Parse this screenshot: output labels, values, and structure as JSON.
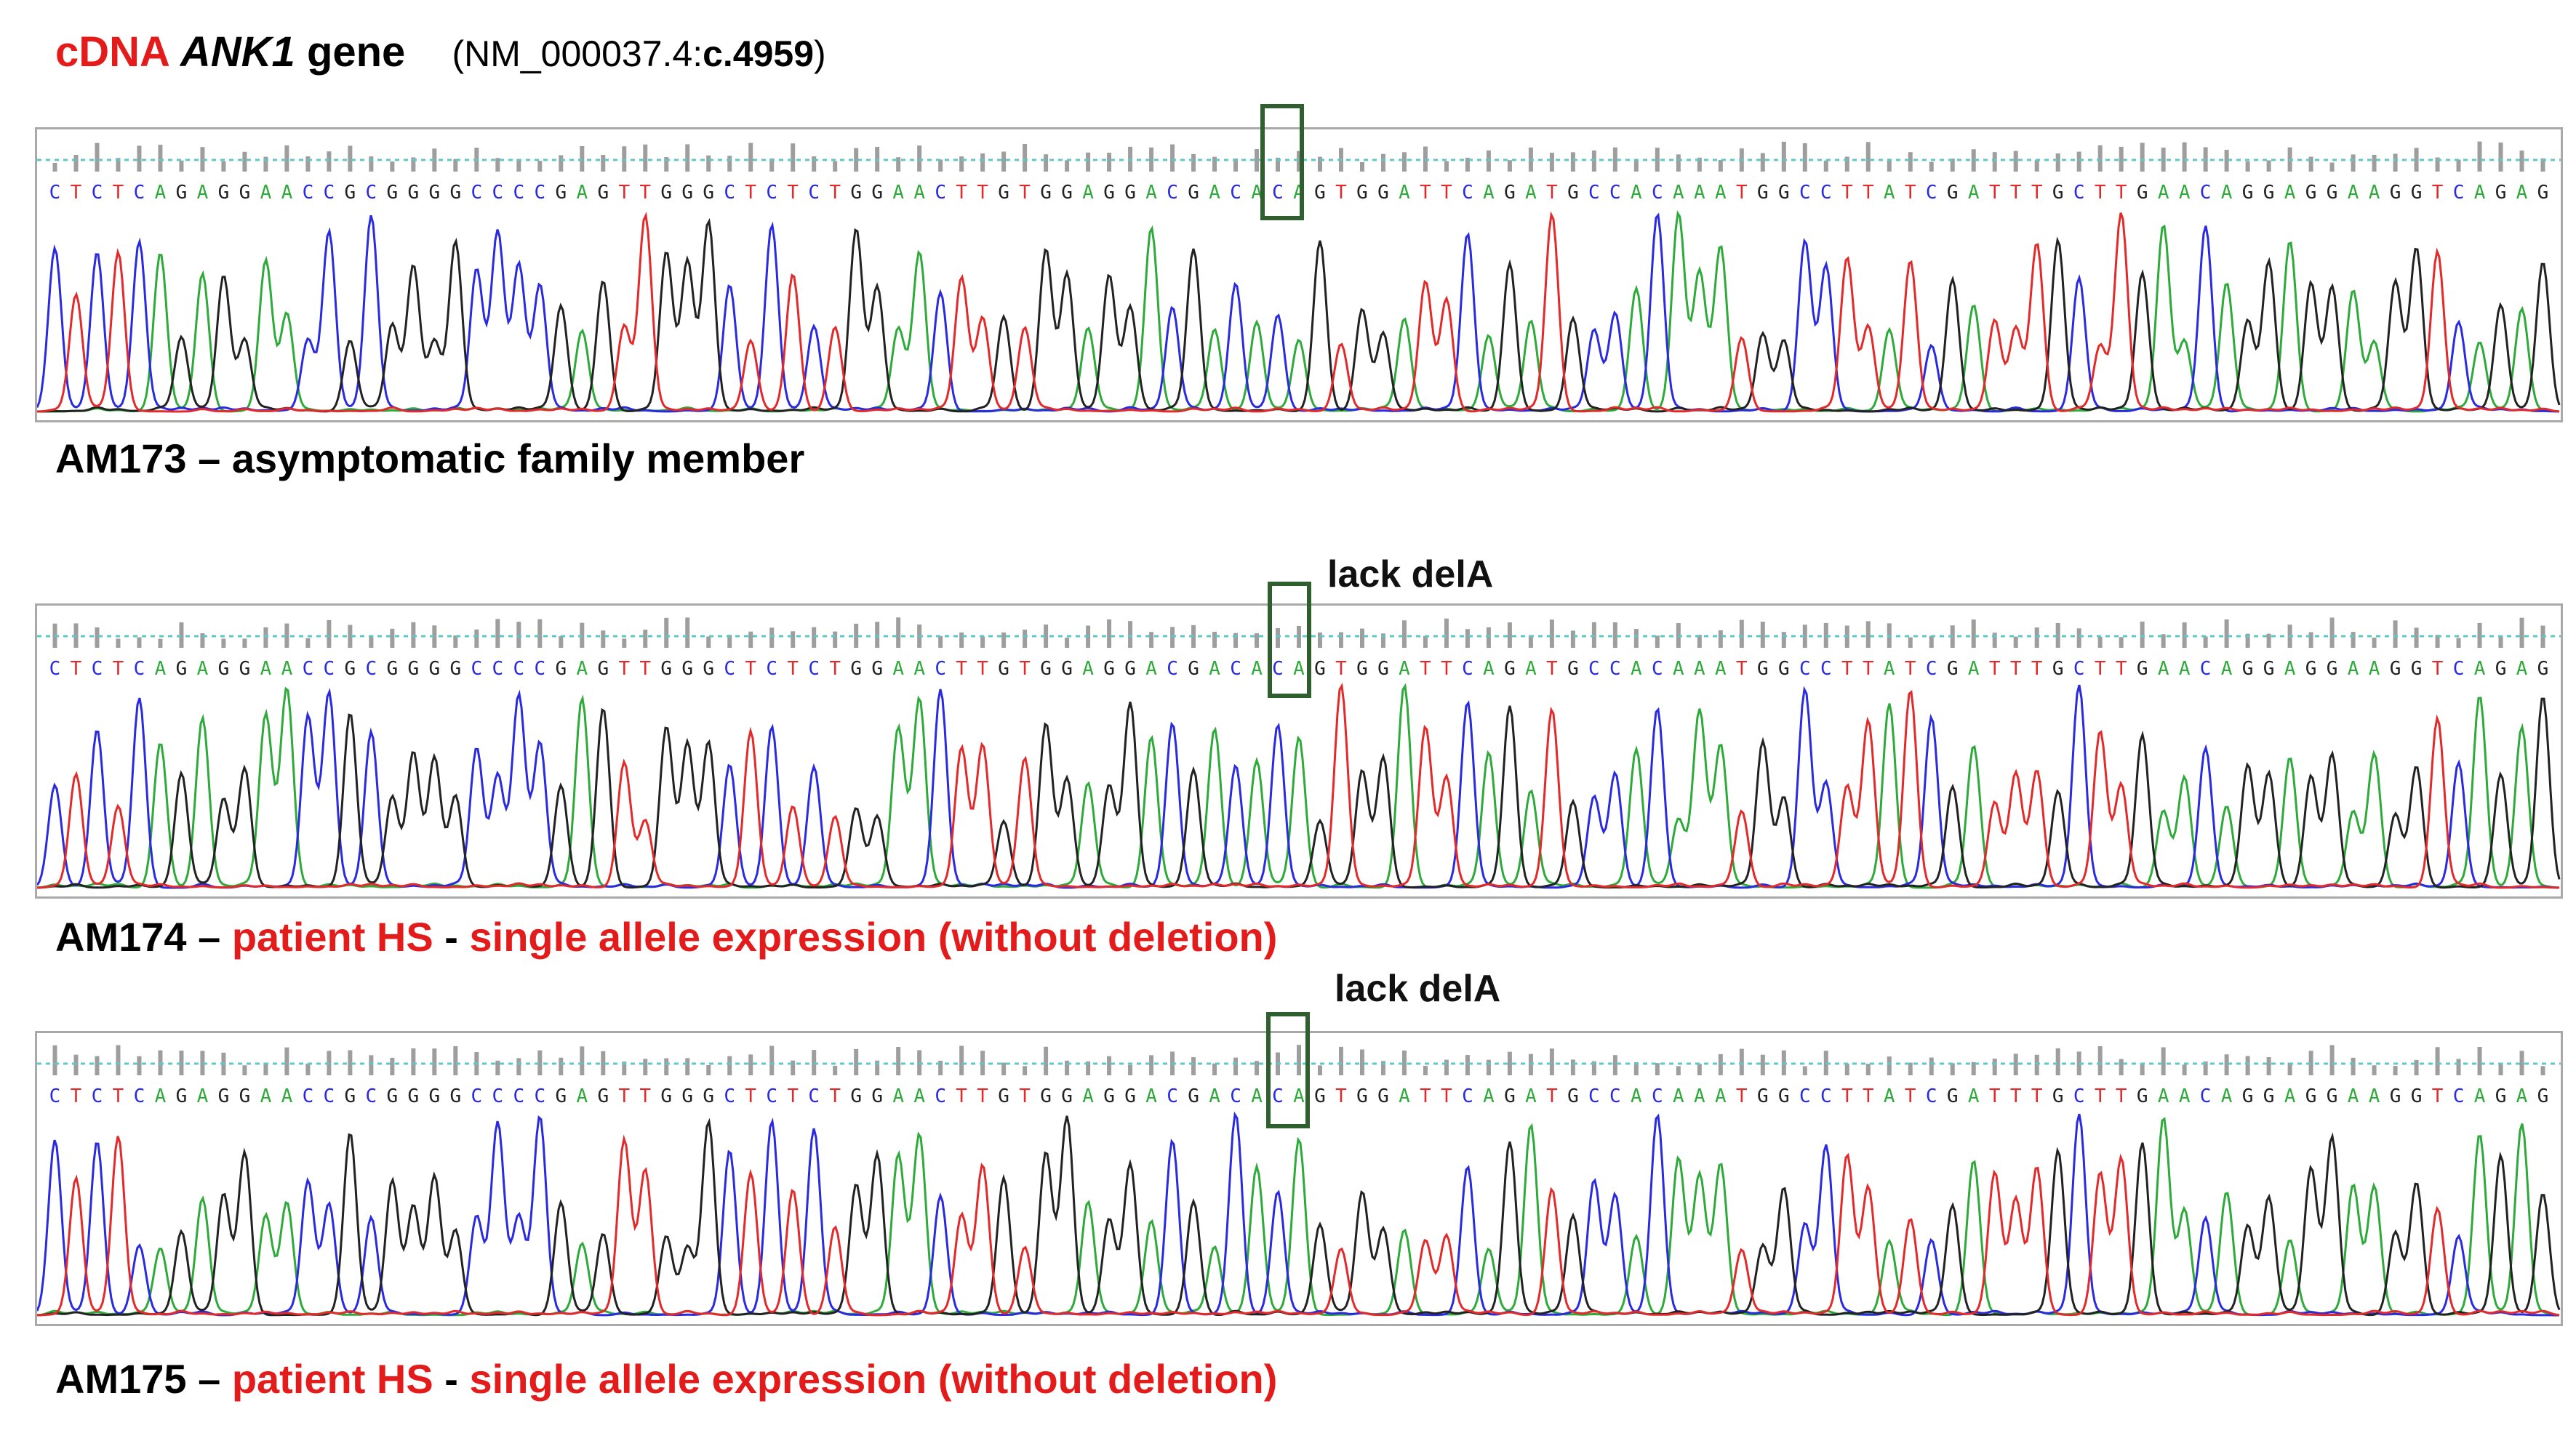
{
  "figure": {
    "title": {
      "cdna": "cDNA",
      "gene_symbol": "ANK1",
      "gene_word": "gene",
      "reference_prefix": "(NM_000037.4:",
      "reference_position": "c.4959",
      "reference_suffix": ")"
    },
    "sequence": "CTCTCAGAGGAACCGCGGGGCCCCGAGTTGGGCTCTCTGGAACTTGTGGAGGACGACACAGTGGATTCAGATGCCACAAATGGCCTTATCGATTTGCTTGAACAGGAGGAAGGTCAGAG",
    "base_colors": {
      "A": "#2eaa3a",
      "C": "#2a2ae0",
      "G": "#222222",
      "T": "#e22a2a"
    },
    "traces": [
      {
        "sample": "AM173",
        "dash": "–",
        "caption_black": "asymptomatic family member",
        "caption_red_1": "",
        "caption_sep": "",
        "caption_red_2": "",
        "annotation": ""
      },
      {
        "sample": "AM174",
        "dash": "–",
        "caption_black": "",
        "caption_red_1": "patient HS",
        "caption_sep": "-",
        "caption_red_2": "single allele expression (without deletion)",
        "annotation": "lack delA"
      },
      {
        "sample": "AM175",
        "dash": "–",
        "caption_black": "",
        "caption_red_1": "patient HS",
        "caption_sep": "-",
        "caption_red_2": "single allele expression (without deletion)",
        "annotation": "lack delA"
      }
    ]
  }
}
